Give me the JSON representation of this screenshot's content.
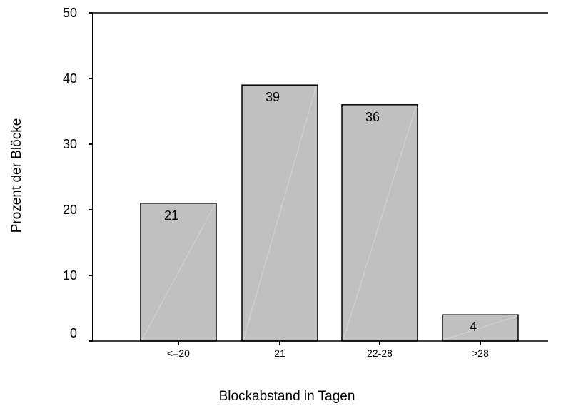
{
  "chart_data": {
    "type": "bar",
    "categories": [
      "<=20",
      "21",
      "22-28",
      ">28"
    ],
    "values": [
      21,
      39,
      36,
      4
    ],
    "data_labels": [
      "21",
      "39",
      "36",
      "4"
    ],
    "xlabel": "Blockabstand in Tagen",
    "ylabel": "Prozent der Blöcke",
    "ylim": [
      0,
      50
    ],
    "yticks": [
      0,
      10,
      20,
      30,
      40,
      50
    ],
    "ytick_labels": [
      "0",
      "10",
      "20",
      "30",
      "40",
      "50"
    ],
    "grid": false,
    "bar_color": "#c0c0c0",
    "bar_edge_color": "#000000"
  }
}
